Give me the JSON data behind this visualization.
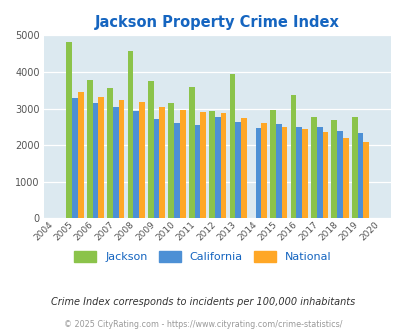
{
  "title": "Jackson Property Crime Index",
  "title_color": "#1565C0",
  "years": [
    2004,
    2005,
    2006,
    2007,
    2008,
    2009,
    2010,
    2011,
    2012,
    2013,
    2014,
    2015,
    2016,
    2017,
    2018,
    2019,
    2020
  ],
  "jackson": [
    null,
    4820,
    3780,
    3570,
    4570,
    3740,
    3160,
    3590,
    2940,
    3940,
    null,
    2960,
    3360,
    2780,
    2700,
    2780,
    null
  ],
  "california": [
    null,
    3300,
    3150,
    3040,
    2940,
    2720,
    2620,
    2560,
    2780,
    2640,
    2470,
    2590,
    2510,
    2500,
    2380,
    2330,
    null
  ],
  "national": [
    null,
    3440,
    3330,
    3240,
    3190,
    3030,
    2960,
    2920,
    2890,
    2740,
    2620,
    2510,
    2450,
    2360,
    2200,
    2100,
    null
  ],
  "jackson_color": "#8BC34A",
  "california_color": "#4D90D5",
  "national_color": "#FFA726",
  "bg_color": "#DCE9F0",
  "ylim": [
    0,
    5000
  ],
  "yticks": [
    0,
    1000,
    2000,
    3000,
    4000,
    5000
  ],
  "bar_width": 0.28,
  "subtitle": "Crime Index corresponds to incidents per 100,000 inhabitants",
  "footer": "© 2025 CityRating.com - https://www.cityrating.com/crime-statistics/",
  "footer_color": "#999999",
  "subtitle_color": "#333333",
  "legend_labels": [
    "Jackson",
    "California",
    "National"
  ],
  "grid_color": "#ffffff"
}
